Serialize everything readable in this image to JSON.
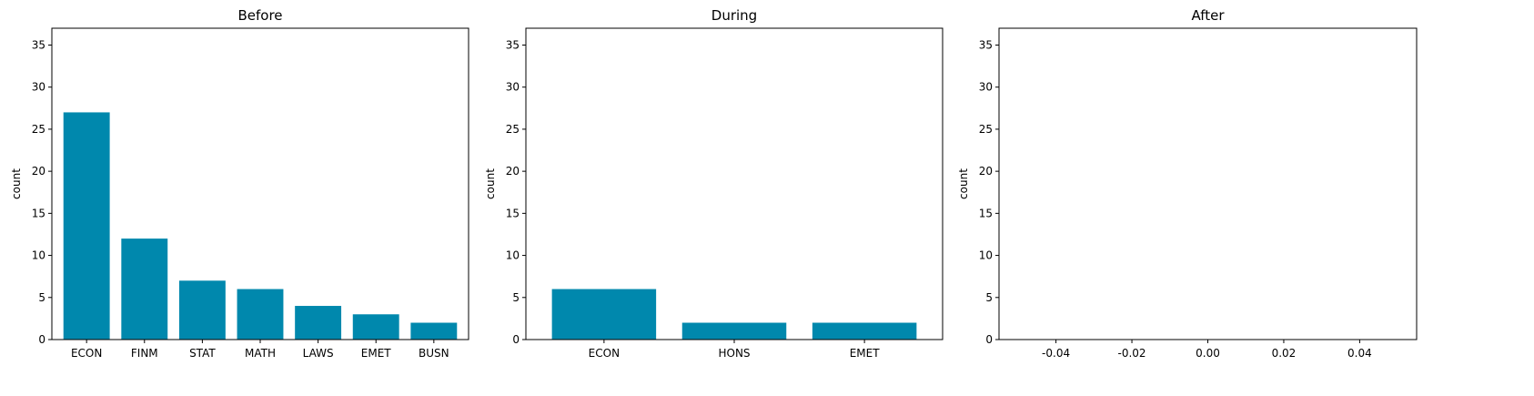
{
  "colors": {
    "bar": "#0088ad"
  },
  "chart_data": [
    {
      "type": "bar",
      "title": "Before",
      "ylabel": "count",
      "ylim": [
        0,
        37
      ],
      "yticks": [
        0,
        5,
        10,
        15,
        20,
        25,
        30,
        35
      ],
      "categories": [
        "ECON",
        "FINM",
        "STAT",
        "MATH",
        "LAWS",
        "EMET",
        "BUSN"
      ],
      "values": [
        27,
        12,
        7,
        6,
        4,
        3,
        2
      ]
    },
    {
      "type": "bar",
      "title": "During",
      "ylabel": "count",
      "ylim": [
        0,
        37
      ],
      "yticks": [
        0,
        5,
        10,
        15,
        20,
        25,
        30,
        35
      ],
      "categories": [
        "ECON",
        "HONS",
        "EMET"
      ],
      "values": [
        6,
        2,
        2
      ]
    },
    {
      "type": "bar",
      "title": "After",
      "ylabel": "count",
      "ylim": [
        0,
        37
      ],
      "yticks": [
        0,
        5,
        10,
        15,
        20,
        25,
        30,
        35
      ],
      "categories": [],
      "values": [],
      "xlim": [
        -0.055,
        0.055
      ],
      "xticks": [
        "-0.04",
        "-0.02",
        "0.00",
        "0.02",
        "0.04"
      ],
      "xtick_values": [
        -0.04,
        -0.02,
        0,
        0.02,
        0.04
      ]
    }
  ]
}
